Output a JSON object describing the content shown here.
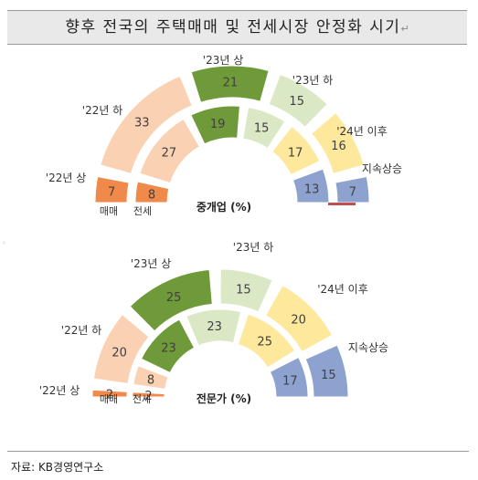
{
  "title": "향후 전국의 주택매매 및 전세시장 안정화 시기",
  "title_mark": "↵",
  "source": "자료: KB경영연구소",
  "colors": {
    "22_sang": "#f08a4b",
    "22_ha": "#fad1b2",
    "23_sang": "#6f9a3a",
    "23_ha": "#dbe8c6",
    "24_ihu": "#fde89c",
    "sustained_rise": "#8da2cf",
    "remainder": "#c0504d"
  },
  "chart_data": [
    {
      "type": "donut",
      "title": "중개업 (%)",
      "period_labels": [
        "'22년 상",
        "'22년 하",
        "'23년 상",
        "'23년 하",
        "'24년 이후",
        "지속상승"
      ],
      "series": [
        {
          "name": "매매",
          "values": [
            7,
            33,
            21,
            15,
            16,
            7
          ]
        },
        {
          "name": "전세",
          "values": [
            8,
            27,
            19,
            15,
            17,
            13
          ]
        }
      ]
    },
    {
      "type": "donut",
      "title": "전문가 (%)",
      "period_labels": [
        "'22년 상",
        "'22년 하",
        "'23년 상",
        "'23년 하",
        "'24년 이후",
        "지속상승"
      ],
      "series": [
        {
          "name": "매매",
          "values": [
            2,
            20,
            25,
            15,
            20,
            15
          ]
        },
        {
          "name": "전세",
          "values": [
            2,
            8,
            23,
            23,
            25,
            17
          ]
        }
      ]
    }
  ]
}
